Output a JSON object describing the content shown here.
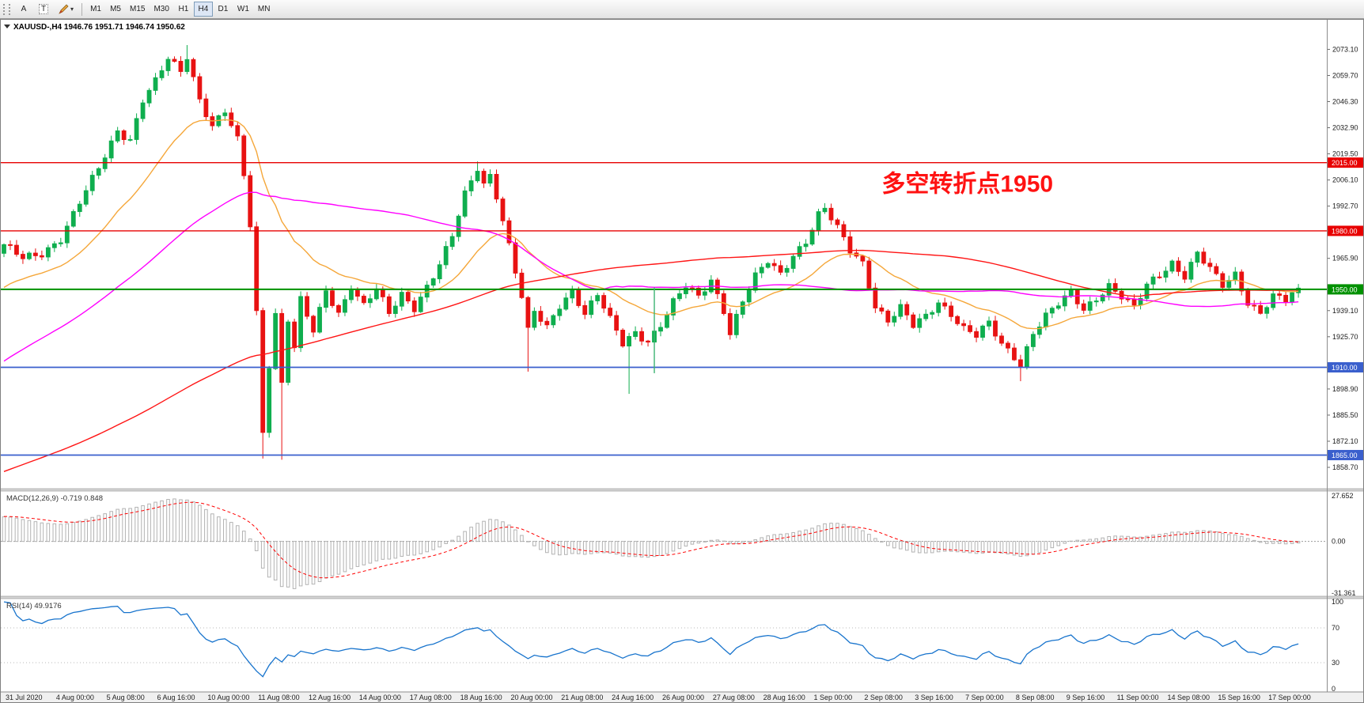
{
  "toolbar": {
    "a_label": "A",
    "t_label": "T",
    "timeframes": [
      "M1",
      "M5",
      "M15",
      "M30",
      "H1",
      "H4",
      "D1",
      "W1",
      "MN"
    ],
    "active_timeframe": "H4"
  },
  "chart_header": {
    "symbol_timeframe": "XAUUSD-,H4",
    "ohlc": "1946.76 1951.71 1946.74 1950.62"
  },
  "chart_data": {
    "type": "candlestick",
    "symbol": "XAUUSD-",
    "timeframe": "H4",
    "bars": 206,
    "ylim": [
      1851,
      2083
    ],
    "last_close": 1950.62,
    "price_axis_labels": [
      "2073.10",
      "2059.70",
      "2046.30",
      "2032.90",
      "2019.50",
      "2006.10",
      "1992.70",
      "1965.90",
      "1939.10",
      "1925.70",
      "1898.90",
      "1885.50",
      "1872.10",
      "1858.70"
    ],
    "levels": [
      {
        "price": 2015.0,
        "label": "2015.00",
        "color": "#e80000",
        "width": 1.4
      },
      {
        "price": 1980.0,
        "label": "1980.00",
        "color": "#e80000",
        "width": 1.4
      },
      {
        "price": 1950.0,
        "label": "1950.00",
        "color": "#009100",
        "width": 2
      },
      {
        "price": 1910.0,
        "label": "1910.00",
        "color": "#3a5fcd",
        "width": 1.8
      },
      {
        "price": 1865.0,
        "label": "1865.00",
        "color": "#3a5fcd",
        "width": 1.8
      }
    ],
    "vline": {
      "bar": 103,
      "from": 1951,
      "to": 1907,
      "color": "#3cb371"
    },
    "annotation": {
      "text": "多空转折点1950",
      "bar": 139,
      "price": 2000,
      "color": "#ff1212",
      "size": 30
    },
    "colors": {
      "up": "#0fae4e",
      "down": "#e81212"
    },
    "ma_lines": [
      {
        "name": "fast",
        "type": "ema",
        "period": 21,
        "color": "#f5a73a",
        "width": 1.4
      },
      {
        "name": "mid",
        "type": "sma",
        "period": 55,
        "color": "#ff00ff",
        "width": 1.4
      },
      {
        "name": "slow",
        "type": "sma",
        "period": 140,
        "color": "#ff1414",
        "width": 1.4
      }
    ],
    "close_waypoints": [
      [
        0,
        1972
      ],
      [
        3,
        1966
      ],
      [
        6,
        1969
      ],
      [
        9,
        1976
      ],
      [
        12,
        1994
      ],
      [
        15,
        2012
      ],
      [
        18,
        2032
      ],
      [
        20,
        2027
      ],
      [
        22,
        2047
      ],
      [
        24,
        2056
      ],
      [
        26,
        2068
      ],
      [
        28,
        2062
      ],
      [
        29,
        2070
      ],
      [
        31,
        2048
      ],
      [
        33,
        2034
      ],
      [
        35,
        2041
      ],
      [
        37,
        2026
      ],
      [
        38,
        2008
      ],
      [
        39,
        1983
      ],
      [
        40,
        1938
      ],
      [
        41,
        1877
      ],
      [
        42,
        1912
      ],
      [
        43,
        1938
      ],
      [
        44,
        1902
      ],
      [
        45,
        1935
      ],
      [
        46,
        1920
      ],
      [
        47,
        1944
      ],
      [
        49,
        1928
      ],
      [
        51,
        1949
      ],
      [
        53,
        1938
      ],
      [
        55,
        1952
      ],
      [
        57,
        1942
      ],
      [
        59,
        1950
      ],
      [
        61,
        1937
      ],
      [
        63,
        1947
      ],
      [
        65,
        1941
      ],
      [
        67,
        1952
      ],
      [
        69,
        1963
      ],
      [
        71,
        1977
      ],
      [
        73,
        1998
      ],
      [
        75,
        2012
      ],
      [
        76,
        2004
      ],
      [
        77,
        2009
      ],
      [
        78,
        1999
      ],
      [
        80,
        1973
      ],
      [
        82,
        1946
      ],
      [
        83,
        1928
      ],
      [
        84,
        1938
      ],
      [
        86,
        1930
      ],
      [
        88,
        1942
      ],
      [
        90,
        1950
      ],
      [
        92,
        1938
      ],
      [
        94,
        1947
      ],
      [
        96,
        1934
      ],
      [
        98,
        1922
      ],
      [
        100,
        1928
      ],
      [
        102,
        1924
      ],
      [
        104,
        1932
      ],
      [
        106,
        1943
      ],
      [
        108,
        1951
      ],
      [
        110,
        1946
      ],
      [
        112,
        1955
      ],
      [
        114,
        1940
      ],
      [
        115,
        1928
      ],
      [
        117,
        1944
      ],
      [
        119,
        1956
      ],
      [
        121,
        1964
      ],
      [
        123,
        1958
      ],
      [
        125,
        1968
      ],
      [
        127,
        1975
      ],
      [
        129,
        1988
      ],
      [
        130,
        1991
      ],
      [
        132,
        1981
      ],
      [
        134,
        1970
      ],
      [
        136,
        1964
      ],
      [
        138,
        1942
      ],
      [
        140,
        1934
      ],
      [
        142,
        1940
      ],
      [
        144,
        1931
      ],
      [
        146,
        1936
      ],
      [
        148,
        1944
      ],
      [
        150,
        1938
      ],
      [
        152,
        1930
      ],
      [
        154,
        1926
      ],
      [
        156,
        1932
      ],
      [
        158,
        1922
      ],
      [
        160,
        1916
      ],
      [
        161,
        1912
      ],
      [
        163,
        1928
      ],
      [
        165,
        1936
      ],
      [
        167,
        1942
      ],
      [
        169,
        1948
      ],
      [
        171,
        1940
      ],
      [
        173,
        1946
      ],
      [
        175,
        1952
      ],
      [
        177,
        1946
      ],
      [
        179,
        1940
      ],
      [
        181,
        1952
      ],
      [
        183,
        1958
      ],
      [
        185,
        1964
      ],
      [
        187,
        1957
      ],
      [
        189,
        1968
      ],
      [
        191,
        1960
      ],
      [
        193,
        1952
      ],
      [
        195,
        1958
      ],
      [
        197,
        1944
      ],
      [
        199,
        1938
      ],
      [
        201,
        1946
      ],
      [
        203,
        1944
      ],
      [
        205,
        1950.62
      ]
    ],
    "pre_waypoints": [
      [
        -150,
        1797
      ],
      [
        -120,
        1806
      ],
      [
        -90,
        1819
      ],
      [
        -60,
        1846
      ],
      [
        -40,
        1882
      ],
      [
        -25,
        1917
      ],
      [
        -12,
        1949
      ],
      [
        -1,
        1969
      ]
    ],
    "wick_overrides": {
      "29": {
        "high": 2075.3
      },
      "41": {
        "low": 1863.2
      },
      "44": {
        "low": 1862.6
      },
      "75": {
        "high": 2015.6
      },
      "83": {
        "low": 1907.8
      },
      "99": {
        "low": 1896.4
      },
      "130": {
        "high": 1993.2
      },
      "161": {
        "low": 1902.9
      }
    },
    "time_axis": {
      "first_label_bar": 1,
      "label_every_bars": 8,
      "labels": [
        "31 Jul 2020",
        "4 Aug 00:00",
        "5 Aug 08:00",
        "6 Aug 16:00",
        "10 Aug 00:00",
        "11 Aug 08:00",
        "12 Aug 16:00",
        "14 Aug 00:00",
        "17 Aug 08:00",
        "18 Aug 16:00",
        "20 Aug 00:00",
        "21 Aug 08:00",
        "24 Aug 16:00",
        "26 Aug 00:00",
        "27 Aug 08:00",
        "28 Aug 16:00",
        "1 Sep 00:00",
        "2 Sep 08:00",
        "3 Sep 16:00",
        "7 Sep 00:00",
        "8 Sep 08:00",
        "9 Sep 16:00",
        "11 Sep 00:00",
        "14 Sep 08:00",
        "15 Sep 16:00",
        "17 Sep 00:00"
      ]
    },
    "indicators": {
      "macd": {
        "label": "MACD(12,26,9)",
        "value_main": "-0.719",
        "value_signal": "0.848",
        "params": [
          12,
          26,
          9
        ],
        "ylim": [
          -31.361,
          27.652
        ],
        "axis_labels": {
          "max": "27.652",
          "zero": "0.00",
          "min": "-31.361"
        },
        "histogram_color": "#b2b2b2",
        "signal_color": "#ff0000"
      },
      "rsi": {
        "label": "RSI(14)",
        "value": "49.9176",
        "period": 14,
        "levels": [
          70,
          30
        ],
        "axis_labels": [
          "100",
          "70",
          "30",
          "0"
        ],
        "line_color": "#1874cd"
      }
    }
  }
}
